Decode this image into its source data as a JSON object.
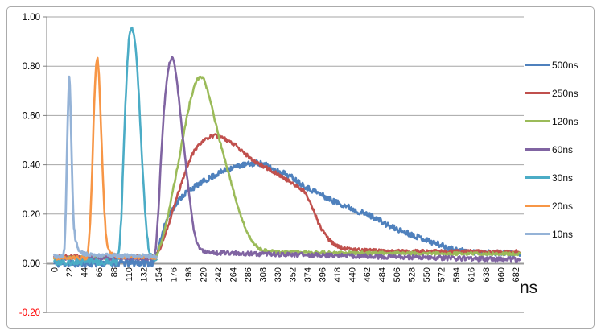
{
  "chart_data": {
    "type": "line",
    "title": "",
    "xlabel": "ns",
    "ylabel": "",
    "xlim": [
      0,
      688
    ],
    "ylim": [
      -0.2,
      1.0
    ],
    "grid": "horizontal",
    "legend_position": "right",
    "x_ticks": [
      0,
      22,
      44,
      66,
      88,
      110,
      132,
      154,
      176,
      198,
      220,
      242,
      264,
      286,
      308,
      330,
      352,
      374,
      396,
      418,
      440,
      462,
      484,
      506,
      528,
      550,
      572,
      594,
      616,
      638,
      660,
      682
    ],
    "y_ticks": [
      {
        "v": 1.0,
        "label": "1.00",
        "color": "#000000"
      },
      {
        "v": 0.8,
        "label": "0.80",
        "color": "#000000"
      },
      {
        "v": 0.6,
        "label": "0.60",
        "color": "#000000"
      },
      {
        "v": 0.4,
        "label": "0.40",
        "color": "#000000"
      },
      {
        "v": 0.2,
        "label": "0.20",
        "color": "#000000"
      },
      {
        "v": 0.0,
        "label": "0.00",
        "color": "#000000"
      },
      {
        "v": -0.2,
        "label": "-0.20",
        "color": "#ff0000"
      }
    ],
    "axis_colors": {
      "gridline": "#a6a6a6",
      "axis_line": "#808080",
      "zero_line": "#9a9a9a",
      "tick_label": "#000000"
    },
    "series": [
      {
        "name": "500ns",
        "color": "#4F81BD",
        "stroke": 2.8,
        "range": [
          0,
          688
        ],
        "noise": 0.011,
        "noise_zones": [
          [
            0,
            149,
            0.016
          ]
        ],
        "points": [
          [
            0,
            0.0
          ],
          [
            148,
            0.004
          ],
          [
            152,
            0.04
          ],
          [
            157,
            0.1
          ],
          [
            163,
            0.155
          ],
          [
            170,
            0.2
          ],
          [
            178,
            0.235
          ],
          [
            188,
            0.27
          ],
          [
            198,
            0.295
          ],
          [
            210,
            0.315
          ],
          [
            222,
            0.335
          ],
          [
            235,
            0.355
          ],
          [
            248,
            0.372
          ],
          [
            262,
            0.388
          ],
          [
            276,
            0.398
          ],
          [
            290,
            0.403
          ],
          [
            300,
            0.408
          ],
          [
            312,
            0.4
          ],
          [
            324,
            0.38
          ],
          [
            338,
            0.368
          ],
          [
            352,
            0.348
          ],
          [
            364,
            0.325
          ],
          [
            375,
            0.305
          ],
          [
            388,
            0.288
          ],
          [
            400,
            0.27
          ],
          [
            415,
            0.25
          ],
          [
            430,
            0.235
          ],
          [
            445,
            0.215
          ],
          [
            460,
            0.2
          ],
          [
            475,
            0.185
          ],
          [
            490,
            0.158
          ],
          [
            505,
            0.14
          ],
          [
            520,
            0.125
          ],
          [
            535,
            0.11
          ],
          [
            550,
            0.095
          ],
          [
            562,
            0.083
          ],
          [
            575,
            0.07
          ],
          [
            585,
            0.062
          ],
          [
            595,
            0.055
          ],
          [
            605,
            0.05
          ],
          [
            620,
            0.046
          ],
          [
            640,
            0.043
          ],
          [
            665,
            0.041
          ],
          [
            688,
            0.04
          ]
        ]
      },
      {
        "name": "250ns",
        "color": "#C0504D",
        "stroke": 2.6,
        "range": [
          0,
          688
        ],
        "noise": 0.007,
        "noise_zones": [],
        "points": [
          [
            0,
            0.026
          ],
          [
            150,
            0.028
          ],
          [
            156,
            0.06
          ],
          [
            163,
            0.11
          ],
          [
            170,
            0.17
          ],
          [
            178,
            0.24
          ],
          [
            186,
            0.31
          ],
          [
            193,
            0.37
          ],
          [
            200,
            0.42
          ],
          [
            207,
            0.455
          ],
          [
            214,
            0.48
          ],
          [
            221,
            0.5
          ],
          [
            228,
            0.512
          ],
          [
            236,
            0.518
          ],
          [
            244,
            0.515
          ],
          [
            252,
            0.505
          ],
          [
            262,
            0.49
          ],
          [
            272,
            0.47
          ],
          [
            282,
            0.445
          ],
          [
            292,
            0.42
          ],
          [
            302,
            0.405
          ],
          [
            312,
            0.39
          ],
          [
            322,
            0.375
          ],
          [
            334,
            0.355
          ],
          [
            346,
            0.335
          ],
          [
            358,
            0.315
          ],
          [
            368,
            0.295
          ],
          [
            376,
            0.26
          ],
          [
            384,
            0.21
          ],
          [
            391,
            0.16
          ],
          [
            398,
            0.125
          ],
          [
            406,
            0.095
          ],
          [
            415,
            0.075
          ],
          [
            425,
            0.063
          ],
          [
            440,
            0.056
          ],
          [
            460,
            0.052
          ],
          [
            500,
            0.049
          ],
          [
            560,
            0.048
          ],
          [
            688,
            0.047
          ]
        ]
      },
      {
        "name": "120ns",
        "color": "#9BBB59",
        "stroke": 2.6,
        "range": [
          0,
          688
        ],
        "noise": 0.006,
        "noise_zones": [],
        "points": [
          [
            0,
            0.022
          ],
          [
            150,
            0.025
          ],
          [
            155,
            0.06
          ],
          [
            160,
            0.1
          ],
          [
            166,
            0.17
          ],
          [
            172,
            0.25
          ],
          [
            180,
            0.36
          ],
          [
            188,
            0.48
          ],
          [
            195,
            0.58
          ],
          [
            201,
            0.66
          ],
          [
            206,
            0.71
          ],
          [
            211,
            0.745
          ],
          [
            216,
            0.76
          ],
          [
            221,
            0.745
          ],
          [
            227,
            0.7
          ],
          [
            233,
            0.63
          ],
          [
            240,
            0.55
          ],
          [
            248,
            0.46
          ],
          [
            256,
            0.38
          ],
          [
            264,
            0.3
          ],
          [
            272,
            0.225
          ],
          [
            280,
            0.16
          ],
          [
            288,
            0.11
          ],
          [
            296,
            0.075
          ],
          [
            305,
            0.057
          ],
          [
            315,
            0.05
          ],
          [
            330,
            0.046
          ],
          [
            400,
            0.043
          ],
          [
            500,
            0.041
          ],
          [
            688,
            0.038
          ]
        ]
      },
      {
        "name": "60ns",
        "color": "#8064A2",
        "stroke": 2.6,
        "range": [
          0,
          688
        ],
        "noise": 0.006,
        "noise_zones": [
          [
            235,
            688,
            0.009
          ]
        ],
        "points": [
          [
            0,
            0.02
          ],
          [
            147,
            0.02
          ],
          [
            150,
            0.06
          ],
          [
            154,
            0.22
          ],
          [
            158,
            0.44
          ],
          [
            162,
            0.62
          ],
          [
            166,
            0.74
          ],
          [
            170,
            0.81
          ],
          [
            174,
            0.84
          ],
          [
            178,
            0.8
          ],
          [
            182,
            0.72
          ],
          [
            186,
            0.62
          ],
          [
            190,
            0.51
          ],
          [
            194,
            0.41
          ],
          [
            198,
            0.31
          ],
          [
            202,
            0.22
          ],
          [
            206,
            0.14
          ],
          [
            210,
            0.088
          ],
          [
            215,
            0.058
          ],
          [
            222,
            0.047
          ],
          [
            240,
            0.043
          ],
          [
            300,
            0.038
          ],
          [
            400,
            0.032
          ],
          [
            480,
            0.027
          ],
          [
            560,
            0.022
          ],
          [
            630,
            0.018
          ],
          [
            688,
            0.016
          ]
        ]
      },
      {
        "name": "30ns",
        "color": "#4BACC6",
        "stroke": 2.6,
        "range": [
          0,
          151
        ],
        "noise": 0.009,
        "noise_zones": [
          [
            0,
            94,
            0.013
          ]
        ],
        "points": [
          [
            0,
            0.006
          ],
          [
            93,
            0.006
          ],
          [
            96,
            0.05
          ],
          [
            99,
            0.18
          ],
          [
            102,
            0.42
          ],
          [
            105,
            0.64
          ],
          [
            108,
            0.82
          ],
          [
            110,
            0.9
          ],
          [
            112,
            0.94
          ],
          [
            115,
            0.95
          ],
          [
            118,
            0.92
          ],
          [
            121,
            0.85
          ],
          [
            124,
            0.73
          ],
          [
            127,
            0.57
          ],
          [
            130,
            0.41
          ],
          [
            133,
            0.26
          ],
          [
            136,
            0.14
          ],
          [
            139,
            0.07
          ],
          [
            142,
            0.035
          ],
          [
            146,
            0.02
          ],
          [
            151,
            0.012
          ]
        ]
      },
      {
        "name": "20ns",
        "color": "#F79646",
        "stroke": 2.6,
        "range": [
          0,
          151
        ],
        "noise": 0.007,
        "noise_zones": [],
        "points": [
          [
            0,
            0.022
          ],
          [
            48,
            0.022
          ],
          [
            50,
            0.05
          ],
          [
            53,
            0.16
          ],
          [
            56,
            0.38
          ],
          [
            58,
            0.57
          ],
          [
            60,
            0.72
          ],
          [
            62,
            0.81
          ],
          [
            64,
            0.83
          ],
          [
            66,
            0.77
          ],
          [
            68,
            0.63
          ],
          [
            70,
            0.48
          ],
          [
            72,
            0.33
          ],
          [
            74,
            0.21
          ],
          [
            76,
            0.125
          ],
          [
            78,
            0.075
          ],
          [
            81,
            0.05
          ],
          [
            85,
            0.036
          ],
          [
            95,
            0.027
          ],
          [
            151,
            0.024
          ]
        ]
      },
      {
        "name": "10ns",
        "color": "#95B3D7",
        "stroke": 2.8,
        "range": [
          0,
          151
        ],
        "noise": 0.008,
        "noise_zones": [],
        "points": [
          [
            0,
            0.028
          ],
          [
            13,
            0.028
          ],
          [
            15,
            0.06
          ],
          [
            17,
            0.22
          ],
          [
            19,
            0.48
          ],
          [
            21,
            0.7
          ],
          [
            22,
            0.75
          ],
          [
            23,
            0.73
          ],
          [
            24,
            0.63
          ],
          [
            25,
            0.51
          ],
          [
            26,
            0.39
          ],
          [
            27,
            0.29
          ],
          [
            28,
            0.21
          ],
          [
            29,
            0.15
          ],
          [
            31,
            0.1
          ],
          [
            33,
            0.078
          ],
          [
            36,
            0.058
          ],
          [
            40,
            0.045
          ],
          [
            46,
            0.038
          ],
          [
            60,
            0.032
          ],
          [
            151,
            0.028
          ]
        ]
      }
    ]
  },
  "legend": {
    "items": [
      {
        "label": "500ns",
        "color": "#4F81BD"
      },
      {
        "label": "250ns",
        "color": "#C0504D"
      },
      {
        "label": "120ns",
        "color": "#9BBB59"
      },
      {
        "label": "60ns",
        "color": "#8064A2"
      },
      {
        "label": "30ns",
        "color": "#4BACC6"
      },
      {
        "label": "20ns",
        "color": "#F79646"
      },
      {
        "label": "10ns",
        "color": "#95B3D7"
      }
    ]
  }
}
